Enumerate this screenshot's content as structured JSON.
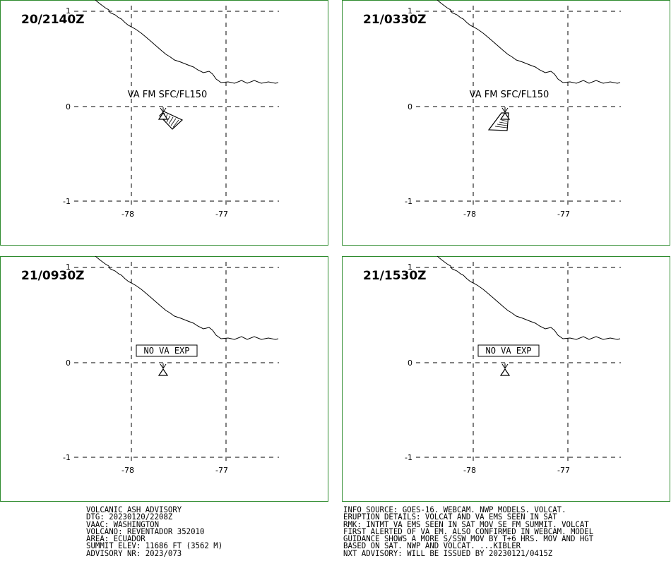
{
  "panels": [
    {
      "time": "20/2140Z",
      "label": "VA FM SFC/FL150",
      "label_boxed": false,
      "ash": "se"
    },
    {
      "time": "21/0330Z",
      "label": "VA FM SFC/FL150",
      "label_boxed": false,
      "ash": "sw"
    },
    {
      "time": "21/0930Z",
      "label": "NO VA EXP",
      "label_boxed": true,
      "ash": "none"
    },
    {
      "time": "21/1530Z",
      "label": "NO VA EXP",
      "label_boxed": true,
      "ash": "none"
    }
  ],
  "axes": {
    "lat_labels": [
      "1",
      "0",
      "-1"
    ],
    "lon_labels": [
      "-78",
      "-77"
    ]
  },
  "advisory_left": [
    "VOLCANIC ASH ADVISORY",
    "DTG: 20230120/2208Z",
    "VAAC: WASHINGTON",
    "VOLCANO: REVENTADOR 352010",
    "AREA: ECUADOR",
    "SUMMIT ELEV: 11686 FT (3562 M)",
    "ADVISORY NR: 2023/073"
  ],
  "advisory_right": [
    "INFO SOURCE: GOES-16. WEBCAM. NWP MODELS. VOLCAT.",
    "ERUPTION DETAILS: VOLCAT AND VA EMS SEEN IN SAT",
    "RMK: INTMT VA EMS SEEN IN SAT MOV SE FM SUMMIT. VOLCAT",
    "FIRST ALERTED OF VA EM. ALSO CONFIRMED IN WEBCAM. MODEL",
    "GUIDANCE SHOWS A MORE S/SSW MOV BY T+6 HRS. MOV AND HGT",
    "BASED ON SAT. NWP AND VOLCAT. ...KIBLER",
    "NXT ADVISORY: WILL BE ISSUED BY 20230121/0415Z"
  ],
  "colors": {
    "frame": "#2e8b2e",
    "lines": "#000000"
  }
}
